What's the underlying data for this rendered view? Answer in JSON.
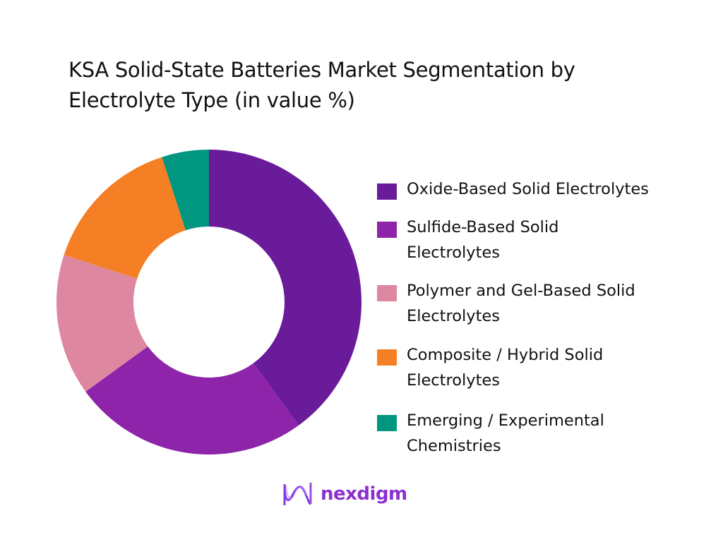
{
  "title": "KSA Solid-State Batteries Market Segmentation by Electrolyte Type (in value %)",
  "brand": {
    "name": "nexdigm",
    "icon": "wave-logo-icon"
  },
  "chart_data": {
    "type": "pie",
    "variant": "donut",
    "title": "KSA Solid-State Batteries Market Segmentation by Electrolyte Type (in value %)",
    "unit": "%",
    "categories": [
      "Oxide-Based Solid Electrolytes",
      "Sulfide-Based Solid Electrolytes",
      "Polymer and Gel-Based Solid Electrolytes",
      "Composite / Hybrid Solid Electrolytes",
      "Emerging / Experimental Chemistries"
    ],
    "values": [
      40,
      25,
      15,
      15,
      5
    ],
    "colors": [
      "#6a1b9a",
      "#8e24aa",
      "#de87a0",
      "#f57f25",
      "#00967f"
    ],
    "start_angle": 0,
    "direction": "clockwise",
    "data_labels": false,
    "legend_position": "right"
  },
  "legend": {
    "items": [
      {
        "label": "Oxide-Based Solid Electrolytes",
        "color": "#6a1b9a"
      },
      {
        "label": "Sulfide-Based Solid Electrolytes",
        "color": "#8e24aa"
      },
      {
        "label": "Polymer and Gel-Based Solid Electrolytes",
        "color": "#de87a0"
      },
      {
        "label": "Composite / Hybrid Solid Electrolytes",
        "color": "#f57f25"
      },
      {
        "label": "Emerging / Experimental Chemistries",
        "color": "#00967f"
      }
    ]
  }
}
